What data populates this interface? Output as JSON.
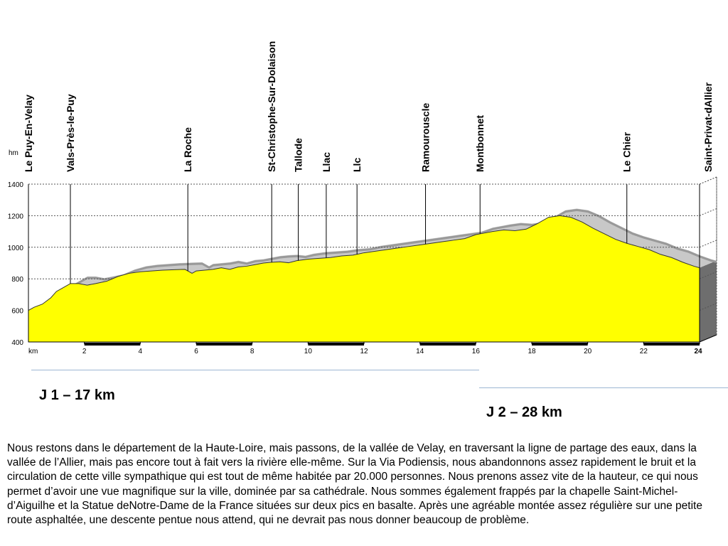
{
  "chart_data": {
    "type": "area",
    "title": "",
    "ylabel": "hm",
    "xlabel": "km",
    "xlim": [
      0,
      24
    ],
    "ylim": [
      400,
      1400
    ],
    "y_ticks": [
      400,
      600,
      800,
      1000,
      1200,
      1400
    ],
    "y_tick_labels": [
      "400",
      "600",
      "800",
      "1000",
      "1200",
      "1400"
    ],
    "x_ticks": [
      2,
      4,
      6,
      8,
      10,
      12,
      14,
      16,
      18,
      20,
      22,
      24
    ],
    "x_tick_labels": [
      "2",
      "4",
      "6",
      "8",
      "10",
      "12",
      "14",
      "16",
      "18",
      "20",
      "22",
      "24"
    ],
    "grid": true,
    "colors": {
      "fill": "#ffff00",
      "shadow": "#999999",
      "shadow_light": "#c8c8c8",
      "side": "#6e6e6e",
      "grid": "#555555"
    },
    "series": [
      {
        "x": [
          0,
          0.2,
          0.5,
          0.8,
          1.0,
          1.2,
          1.5,
          1.8,
          2.1,
          2.4,
          2.8,
          3.2,
          3.6,
          4.0,
          4.4,
          4.8,
          5.2,
          5.6,
          5.85,
          6.0,
          6.3,
          6.6,
          6.9,
          7.2,
          7.5,
          7.8,
          8.1,
          8.4,
          8.7,
          9.0,
          9.3,
          9.6,
          10.0,
          10.4,
          10.8,
          11.2,
          11.6,
          12.0,
          12.4,
          12.8,
          13.2,
          13.6,
          14.0,
          14.4,
          14.8,
          15.2,
          15.6,
          16.0,
          16.3,
          16.6,
          17.0,
          17.4,
          17.8,
          18.2,
          18.6,
          19.0,
          19.4,
          19.8,
          20.2,
          20.6,
          21.0,
          21.4,
          21.8,
          22.2,
          22.6,
          23.0,
          23.4,
          23.8,
          24.0
        ],
        "y": [
          600,
          620,
          640,
          680,
          720,
          740,
          770,
          770,
          760,
          770,
          785,
          815,
          835,
          845,
          850,
          855,
          858,
          860,
          835,
          850,
          855,
          860,
          870,
          860,
          875,
          880,
          890,
          900,
          905,
          908,
          902,
          915,
          925,
          930,
          935,
          945,
          950,
          965,
          975,
          985,
          995,
          1005,
          1015,
          1025,
          1035,
          1045,
          1055,
          1080,
          1090,
          1100,
          1110,
          1105,
          1115,
          1150,
          1190,
          1200,
          1190,
          1160,
          1120,
          1085,
          1050,
          1025,
          1005,
          985,
          955,
          935,
          905,
          880,
          870
        ]
      }
    ],
    "places": [
      {
        "name": "Le Puy-En-Velay",
        "km": 0.0
      },
      {
        "name": "Vals-Près-le-Puy",
        "km": 1.5
      },
      {
        "name": "La Roche",
        "km": 5.7
      },
      {
        "name": "St-Christophe-Sur-Dolaison",
        "km": 8.7
      },
      {
        "name": "Tallode",
        "km": 9.65
      },
      {
        "name": "Llac",
        "km": 10.65
      },
      {
        "name": "Llc",
        "km": 11.75
      },
      {
        "name": "Ramourouscle",
        "km": 14.2
      },
      {
        "name": "Montbonnet",
        "km": 16.15
      },
      {
        "name": "Le Chier",
        "km": 21.4
      },
      {
        "name": "Saint-Privat-dAllier",
        "km": 24.0
      }
    ]
  },
  "stages": {
    "day1": "J 1 – 17 km",
    "day2": "J 2 – 28 km"
  },
  "description": "Nous restons dans le département de la Haute-Loire, mais passons, de la vallée de Velay, en traversant la ligne de partage des eaux, dans la vallée de l’Allier, mais pas encore tout à fait vers la rivière elle-même. Sur la Via Podiensis, nous abandonnons assez rapidement le bruit et la circulation de cette ville sympathique qui est tout de même habitée par 20.000 personnes. Nous prenons assez vite de la hauteur, ce qui nous permet d’avoir une vue magnifique sur la ville, dominée par sa cathédrale. Nous sommes également frappés par la chapelle Saint-Michel-d’Aiguilhe et la Statue deNotre-Dame de la France situées sur deux pics en basalte. Après une agréable montée assez régulière sur une petite route asphaltée, une descente pentue nous attend, qui ne devrait pas nous donner beaucoup de problème."
}
